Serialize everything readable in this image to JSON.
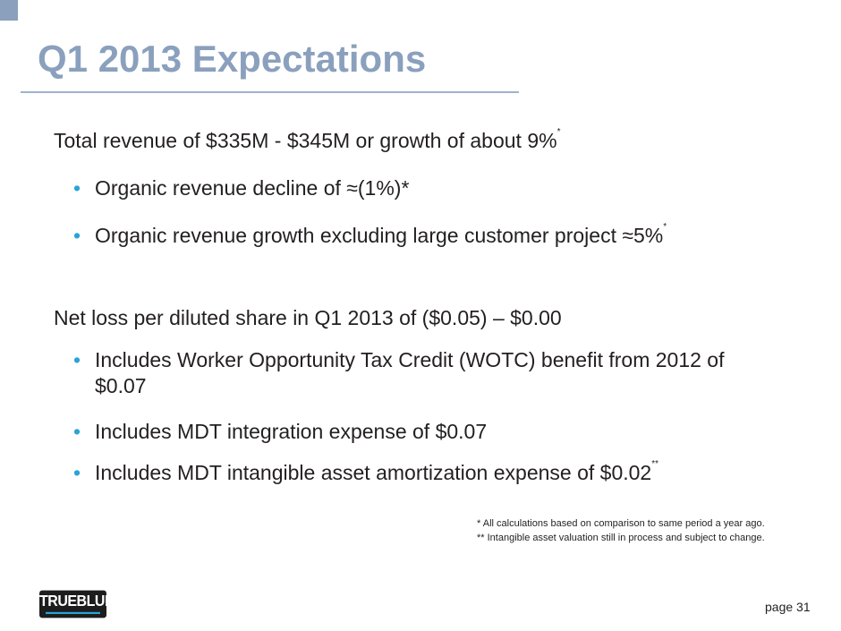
{
  "title": "Q1 2013 Expectations",
  "items": [
    {
      "text": "Total revenue of $335M - $345M or growth of about 9%",
      "sup": "*"
    },
    {
      "text": "Organic revenue decline of ≈(1%)*",
      "sup": ""
    },
    {
      "text": "Organic revenue growth excluding large customer project ≈5%",
      "sup": "*"
    },
    {
      "text": "Net loss per diluted share in Q1 2013 of ($0.05) – $0.00",
      "sup": ""
    },
    {
      "text": "Includes Worker Opportunity Tax Credit (WOTC) benefit from 2012 of",
      "text2": "$0.07",
      "sup": ""
    },
    {
      "text": "Includes MDT integration expense of $0.07",
      "sup": ""
    },
    {
      "text": "Includes MDT intangible asset amortization expense of $0.02",
      "sup": "**"
    }
  ],
  "bullet": "•",
  "footnotes": [
    "* All calculations based on comparison to same period a year ago.",
    "** Intangible asset valuation still in process and subject to change."
  ],
  "logo": "TRUEBLUE",
  "page": "page 31"
}
